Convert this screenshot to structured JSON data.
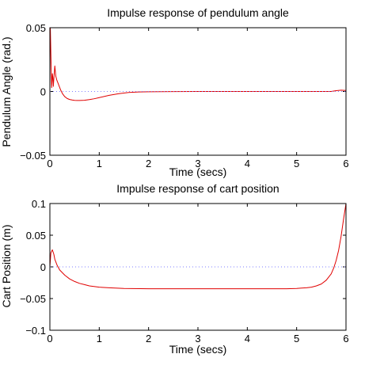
{
  "colors": {
    "background": "#ffffff",
    "axes": "#000000",
    "response_line": "#e00000",
    "reference_line": "#7f7fff"
  },
  "chart_data": [
    {
      "type": "line",
      "title": "Impulse response of pendulum angle",
      "xlabel": "Time (secs)",
      "ylabel": "Pendulum Angle (rad.)",
      "xlim": [
        0,
        6
      ],
      "ylim": [
        -0.05,
        0.05
      ],
      "xticks": [
        0,
        1,
        2,
        3,
        4,
        5,
        6
      ],
      "xtick_labels": [
        "0",
        "1",
        "2",
        "3",
        "4",
        "5",
        "6"
      ],
      "yticks": [
        -0.05,
        0,
        0.05
      ],
      "ytick_labels": [
        "−0.05",
        "0",
        "0.05"
      ],
      "grid": false,
      "series": [
        {
          "kind": "response",
          "color": "#e00000",
          "style": "solid",
          "x": [
            0,
            0.005,
            0.01,
            0.02,
            0.03,
            0.035,
            0.04,
            0.05,
            0.06,
            0.07,
            0.08,
            0.1,
            0.11,
            0.12,
            0.14,
            0.16,
            0.19,
            0.22,
            0.26,
            0.3,
            0.35,
            0.4,
            0.45,
            0.5,
            0.55,
            0.6,
            0.7,
            0.8,
            0.9,
            1.0,
            1.2,
            1.4,
            1.6,
            1.8,
            2.0,
            2.5,
            3.0,
            4.0,
            5.0,
            5.7,
            5.75,
            5.8,
            5.9,
            6.0
          ],
          "y": [
            0,
            0.05,
            0.049,
            0.03,
            0.012,
            0.003,
            0.006,
            0.014,
            0.011,
            0.004,
            0.01,
            0.02,
            0.016,
            0.012,
            0.009,
            0.007,
            0.004,
            0.001,
            -0.002,
            -0.004,
            -0.0055,
            -0.0063,
            -0.0067,
            -0.007,
            -0.0071,
            -0.0071,
            -0.0069,
            -0.0064,
            -0.0057,
            -0.0048,
            -0.003,
            -0.0017,
            -0.0008,
            -0.0004,
            -0.0002,
            -0.0001,
            0,
            0,
            0,
            0,
            0.0003,
            0.0006,
            0.001,
            0.0008
          ]
        },
        {
          "kind": "reference",
          "color": "#7f7fff",
          "style": "dotted",
          "x": [
            0,
            6
          ],
          "y": [
            0,
            0
          ]
        }
      ]
    },
    {
      "type": "line",
      "title": "Impulse response of cart position",
      "xlabel": "Time (secs)",
      "ylabel": "Cart Position (m)",
      "xlim": [
        0,
        6
      ],
      "ylim": [
        -0.1,
        0.1
      ],
      "xticks": [
        0,
        1,
        2,
        3,
        4,
        5,
        6
      ],
      "xtick_labels": [
        "0",
        "1",
        "2",
        "3",
        "4",
        "5",
        "6"
      ],
      "yticks": [
        -0.1,
        -0.05,
        0,
        0.05,
        0.1
      ],
      "ytick_labels": [
        "−0.1",
        "−0.05",
        "0",
        "0.05",
        "0.1"
      ],
      "grid": false,
      "series": [
        {
          "kind": "response",
          "color": "#e00000",
          "style": "solid",
          "x": [
            0,
            0.02,
            0.05,
            0.08,
            0.1,
            0.15,
            0.2,
            0.3,
            0.4,
            0.5,
            0.6,
            0.7,
            0.8,
            1.0,
            1.2,
            1.5,
            2.0,
            2.5,
            3.0,
            3.5,
            4.0,
            4.5,
            4.8,
            5.0,
            5.1,
            5.2,
            5.3,
            5.4,
            5.5,
            5.6,
            5.7,
            5.75,
            5.8,
            5.85,
            5.9,
            5.95,
            6.0
          ],
          "y": [
            0,
            0.022,
            0.027,
            0.02,
            0.012,
            0.002,
            -0.005,
            -0.013,
            -0.019,
            -0.023,
            -0.026,
            -0.028,
            -0.03,
            -0.032,
            -0.033,
            -0.034,
            -0.0345,
            -0.0345,
            -0.0345,
            -0.0345,
            -0.0345,
            -0.0345,
            -0.0345,
            -0.034,
            -0.0335,
            -0.033,
            -0.032,
            -0.03,
            -0.027,
            -0.021,
            -0.011,
            -0.002,
            0.01,
            0.026,
            0.048,
            0.075,
            0.1
          ]
        },
        {
          "kind": "reference",
          "color": "#7f7fff",
          "style": "dotted",
          "x": [
            0,
            6
          ],
          "y": [
            0,
            0
          ]
        }
      ]
    }
  ]
}
